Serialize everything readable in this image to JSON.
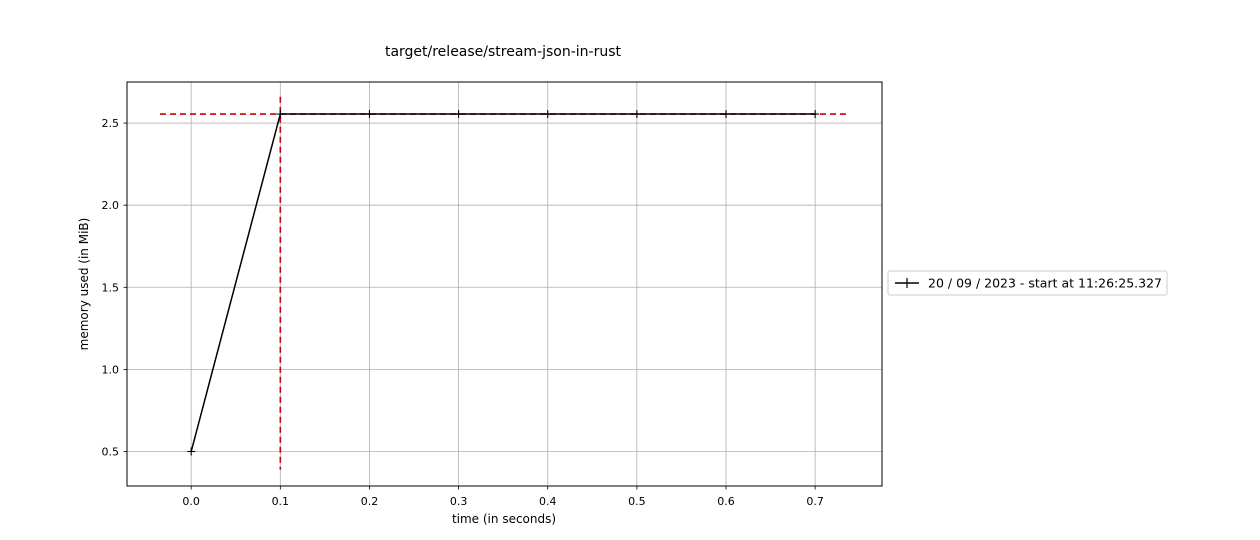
{
  "chart_data": {
    "type": "line",
    "title": "target/release/stream-json-in-rust",
    "xlabel": "time (in seconds)",
    "ylabel": "memory used (in MiB)",
    "xlim": [
      -0.072,
      0.775
    ],
    "ylim": [
      0.29,
      2.75
    ],
    "x_ticks": [
      0.0,
      0.1,
      0.2,
      0.3,
      0.4,
      0.5,
      0.6,
      0.7
    ],
    "x_tick_labels": [
      "0.0",
      "0.1",
      "0.2",
      "0.3",
      "0.4",
      "0.5",
      "0.6",
      "0.7"
    ],
    "y_ticks": [
      0.5,
      1.0,
      1.5,
      2.0,
      2.5
    ],
    "y_tick_labels": [
      "0.5",
      "1.0",
      "1.5",
      "2.0",
      "2.5"
    ],
    "grid": true,
    "legend_placement": "outside-right",
    "series": [
      {
        "name": "20 / 09 / 2023 - start at 11:26:25.327",
        "color": "#000000",
        "marker": "plus",
        "x": [
          0.0,
          0.1,
          0.2,
          0.3,
          0.4,
          0.5,
          0.6,
          0.7
        ],
        "y": [
          0.5,
          2.555,
          2.555,
          2.555,
          2.555,
          2.555,
          2.555,
          2.555
        ]
      }
    ],
    "max_lines": {
      "color": "#cc0000",
      "style": "dashed",
      "y_value": 2.555,
      "x_value": 0.1,
      "h_extent": [
        -0.035,
        0.735
      ],
      "v_extent": [
        0.39,
        2.66
      ]
    }
  }
}
